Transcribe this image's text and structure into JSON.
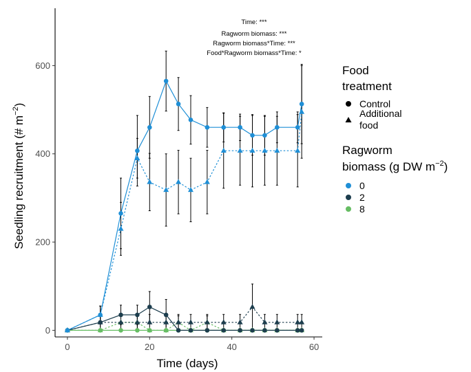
{
  "chart_data": {
    "type": "line",
    "xlabel": "Time (days)",
    "ylabel_text": "Seedling recruitment  (#  m",
    "ylabel_sup": "−2",
    "ylabel_close": ")",
    "xlim": [
      -3,
      62
    ],
    "ylim": [
      -15,
      730
    ],
    "xticks": [
      0,
      20,
      40,
      60
    ],
    "yticks": [
      0,
      200,
      400,
      600
    ],
    "grid": false,
    "legend_position": "right",
    "annotations": [
      "Time: ***",
      "Ragworm biomass: ***",
      "Ragworm biomass*Time: ***",
      "Food*Ragworm biomass*Time: *"
    ],
    "legend_food": {
      "title_lines": [
        "Food",
        "treatment"
      ],
      "items": [
        {
          "label_lines": [
            "Control"
          ],
          "shape": "circle"
        },
        {
          "label_lines": [
            "Additional",
            "food"
          ],
          "shape": "triangle"
        }
      ]
    },
    "legend_rag": {
      "title_line1": "Ragworm",
      "title_line2_text": "biomass (g DW m",
      "title_line2_sup": "−2",
      "title_line2_close": ")",
      "items": [
        {
          "label": "0",
          "color": "#1f8fd6"
        },
        {
          "label": "2",
          "color": "#1c3d4d"
        },
        {
          "label": "8",
          "color": "#66bd63"
        }
      ]
    },
    "series": [
      {
        "food": "Control",
        "ragworm": "0",
        "color": "#1f8fd6",
        "shape": "circle",
        "dash": false,
        "x": [
          0,
          8,
          13,
          17,
          20,
          24,
          27,
          30,
          34,
          38,
          42,
          45,
          48,
          51,
          56,
          57
        ],
        "y": [
          0,
          35,
          265,
          407,
          460,
          565,
          513,
          477,
          460,
          460,
          460,
          442,
          442,
          460,
          460,
          513
        ],
        "err": [
          0,
          20,
          80,
          80,
          70,
          68,
          60,
          55,
          45,
          33,
          30,
          45,
          45,
          35,
          35,
          90
        ]
      },
      {
        "food": "Additional food",
        "ragworm": "0",
        "color": "#1f8fd6",
        "shape": "triangle",
        "dash": true,
        "x": [
          0,
          8,
          13,
          17,
          20,
          24,
          27,
          30,
          34,
          38,
          42,
          45,
          48,
          51,
          56,
          57
        ],
        "y": [
          0,
          35,
          230,
          390,
          336,
          318,
          336,
          318,
          336,
          407,
          407,
          407,
          407,
          407,
          407,
          495
        ],
        "err": [
          0,
          20,
          60,
          45,
          65,
          82,
          72,
          72,
          72,
          85,
          78,
          82,
          78,
          78,
          82,
          105
        ]
      },
      {
        "food": "Control",
        "ragworm": "2",
        "color": "#1c3d4d",
        "shape": "circle",
        "dash": false,
        "x": [
          0,
          8,
          13,
          17,
          20,
          24,
          27,
          30,
          34,
          38,
          42,
          45,
          48,
          51,
          56,
          57
        ],
        "y": [
          0,
          18,
          35,
          35,
          53,
          35,
          0,
          0,
          0,
          0,
          0,
          0,
          0,
          0,
          0,
          0
        ],
        "err": [
          0,
          15,
          22,
          22,
          35,
          35,
          0,
          0,
          0,
          0,
          0,
          0,
          0,
          0,
          0,
          0
        ]
      },
      {
        "food": "Additional food",
        "ragworm": "2",
        "color": "#1c3d4d",
        "shape": "triangle",
        "dash": true,
        "x": [
          0,
          8,
          13,
          17,
          20,
          24,
          27,
          30,
          34,
          38,
          42,
          45,
          48,
          51,
          56,
          57
        ],
        "y": [
          0,
          18,
          18,
          18,
          18,
          18,
          18,
          18,
          18,
          18,
          18,
          53,
          18,
          18,
          18,
          18
        ],
        "err": [
          0,
          15,
          18,
          18,
          18,
          18,
          18,
          18,
          18,
          18,
          18,
          52,
          18,
          18,
          18,
          18
        ]
      },
      {
        "food": "Control",
        "ragworm": "8",
        "color": "#66bd63",
        "shape": "circle",
        "dash": false,
        "x": [
          0,
          8,
          13,
          17,
          20,
          24,
          27,
          30,
          34,
          38,
          42,
          45,
          48,
          51,
          56,
          57
        ],
        "y": [
          0,
          0,
          0,
          0,
          0,
          0,
          0,
          0,
          0,
          0,
          0,
          0,
          0,
          0,
          0,
          0
        ],
        "err": [
          0,
          0,
          0,
          0,
          0,
          0,
          0,
          0,
          0,
          0,
          0,
          0,
          0,
          0,
          0,
          0
        ]
      },
      {
        "food": "Additional food",
        "ragworm": "8",
        "color": "#66bd63",
        "shape": "triangle",
        "dash": true,
        "x": [
          0,
          8,
          13,
          17,
          20,
          24,
          27,
          30,
          34,
          38,
          42,
          45,
          48,
          51,
          56,
          57
        ],
        "y": [
          0,
          0,
          18,
          18,
          0,
          0,
          18,
          0,
          18,
          0,
          0,
          0,
          0,
          0,
          0,
          0
        ],
        "err": [
          0,
          0,
          15,
          15,
          0,
          0,
          15,
          0,
          15,
          0,
          0,
          0,
          0,
          0,
          0,
          0
        ]
      }
    ]
  }
}
